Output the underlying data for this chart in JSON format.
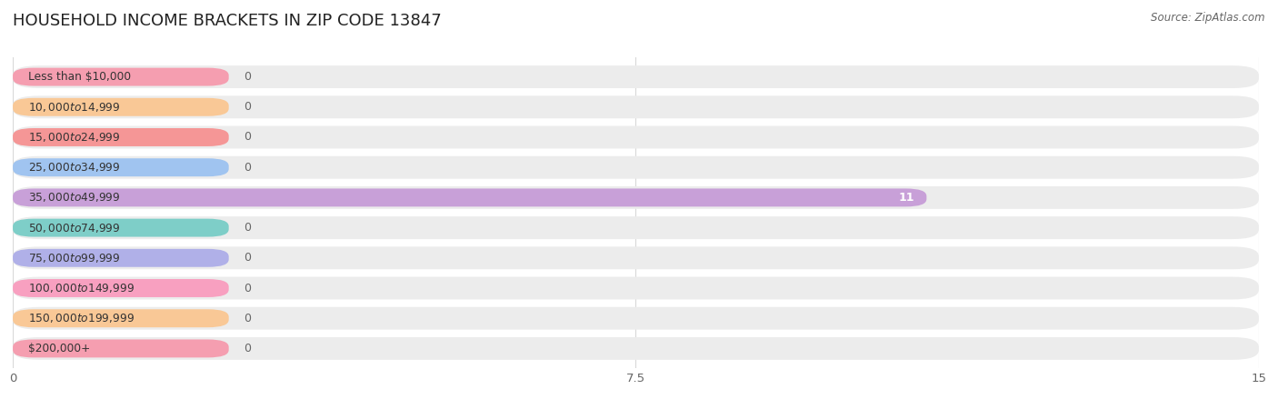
{
  "title": "HOUSEHOLD INCOME BRACKETS IN ZIP CODE 13847",
  "source": "Source: ZipAtlas.com",
  "categories": [
    "Less than $10,000",
    "$10,000 to $14,999",
    "$15,000 to $24,999",
    "$25,000 to $34,999",
    "$35,000 to $49,999",
    "$50,000 to $74,999",
    "$75,000 to $99,999",
    "$100,000 to $149,999",
    "$150,000 to $199,999",
    "$200,000+"
  ],
  "values": [
    0,
    0,
    0,
    0,
    11,
    0,
    0,
    0,
    0,
    0
  ],
  "bar_colors": [
    "#f59eb0",
    "#f9c896",
    "#f59696",
    "#a0c4f0",
    "#c8a0d8",
    "#7ecec8",
    "#b0b0e8",
    "#f8a0c0",
    "#f9c896",
    "#f59eb0"
  ],
  "bg_bar_color": "#ececec",
  "xlim": [
    0,
    15
  ],
  "xticks": [
    0,
    7.5,
    15
  ],
  "background_color": "#ffffff",
  "title_fontsize": 13,
  "value_label_color": "#ffffff",
  "zero_label_color": "#666666",
  "bar_height": 0.6,
  "bg_bar_height": 0.75,
  "label_bar_width": 2.6,
  "rounding_size_bg": 0.32,
  "rounding_size_bar": 0.25,
  "grid_color": "#d8d8d8",
  "tick_fontsize": 9.5,
  "cat_fontsize": 8.8,
  "val_fontsize": 9.0
}
